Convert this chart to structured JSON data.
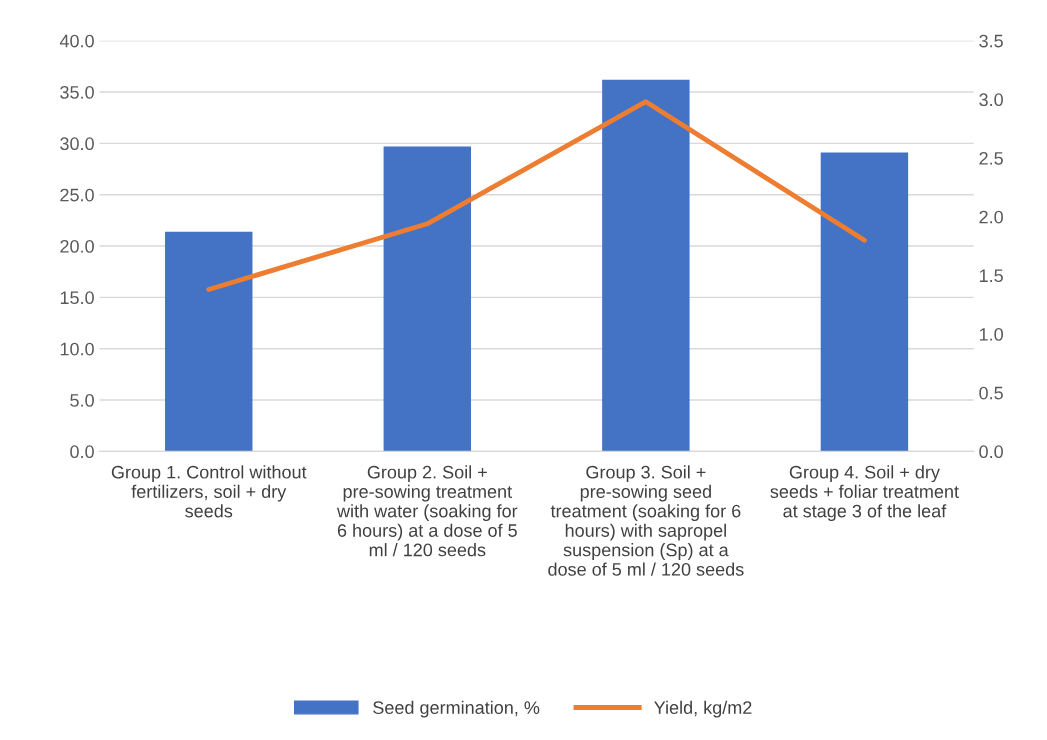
{
  "chart_data": {
    "type": "bar",
    "categories": [
      "Group 1. Control without fertilizers, soil + dry seeds",
      "Group 2. Soil + pre-sowing treatment with water (soaking for 6 hours) at a dose of 5 ml / 120 seeds",
      "Group 3. Soil + pre-sowing seed treatment (soaking for 6 hours) with sapropel suspension (Sp) at a dose of 5 ml / 120 seeds",
      "Group 4. Soil + dry seeds + foliar treatment at stage 3 of the leaf"
    ],
    "series": [
      {
        "name": "Seed germination, %",
        "color": "#4472c4",
        "values": [
          21.4,
          29.7,
          36.2,
          29.1
        ]
      },
      {
        "name": "Yield, kg/m2",
        "type": "line",
        "axis": "y2",
        "color": "#ed7d31",
        "values": [
          1.38,
          1.94,
          2.98,
          1.8
        ]
      }
    ],
    "ylim": [
      0,
      40
    ],
    "yticks": [
      {
        "value": 0,
        "label": "0.0"
      },
      {
        "value": 5,
        "label": "5.0"
      },
      {
        "value": 10,
        "label": "10.0"
      },
      {
        "value": 15,
        "label": "15.0"
      },
      {
        "value": 20,
        "label": "20.0"
      },
      {
        "value": 25,
        "label": "25.0"
      },
      {
        "value": 30,
        "label": "30.0"
      },
      {
        "value": 35,
        "label": "35.0"
      },
      {
        "value": 40,
        "label": "40.0"
      }
    ],
    "y2lim": [
      0,
      3.5
    ],
    "y2ticks": [
      {
        "value": 0,
        "label": "0.0"
      },
      {
        "value": 0.5,
        "label": "0.5"
      },
      {
        "value": 1,
        "label": "1.0"
      },
      {
        "value": 1.5,
        "label": "1.5"
      },
      {
        "value": 2,
        "label": "2.0"
      },
      {
        "value": 2.5,
        "label": "2.5"
      },
      {
        "value": 3,
        "label": "3.0"
      },
      {
        "value": 3.5,
        "label": "3.5"
      }
    ],
    "grid": "y",
    "legend": "bottom",
    "marker": "none",
    "line_style": "solid"
  }
}
